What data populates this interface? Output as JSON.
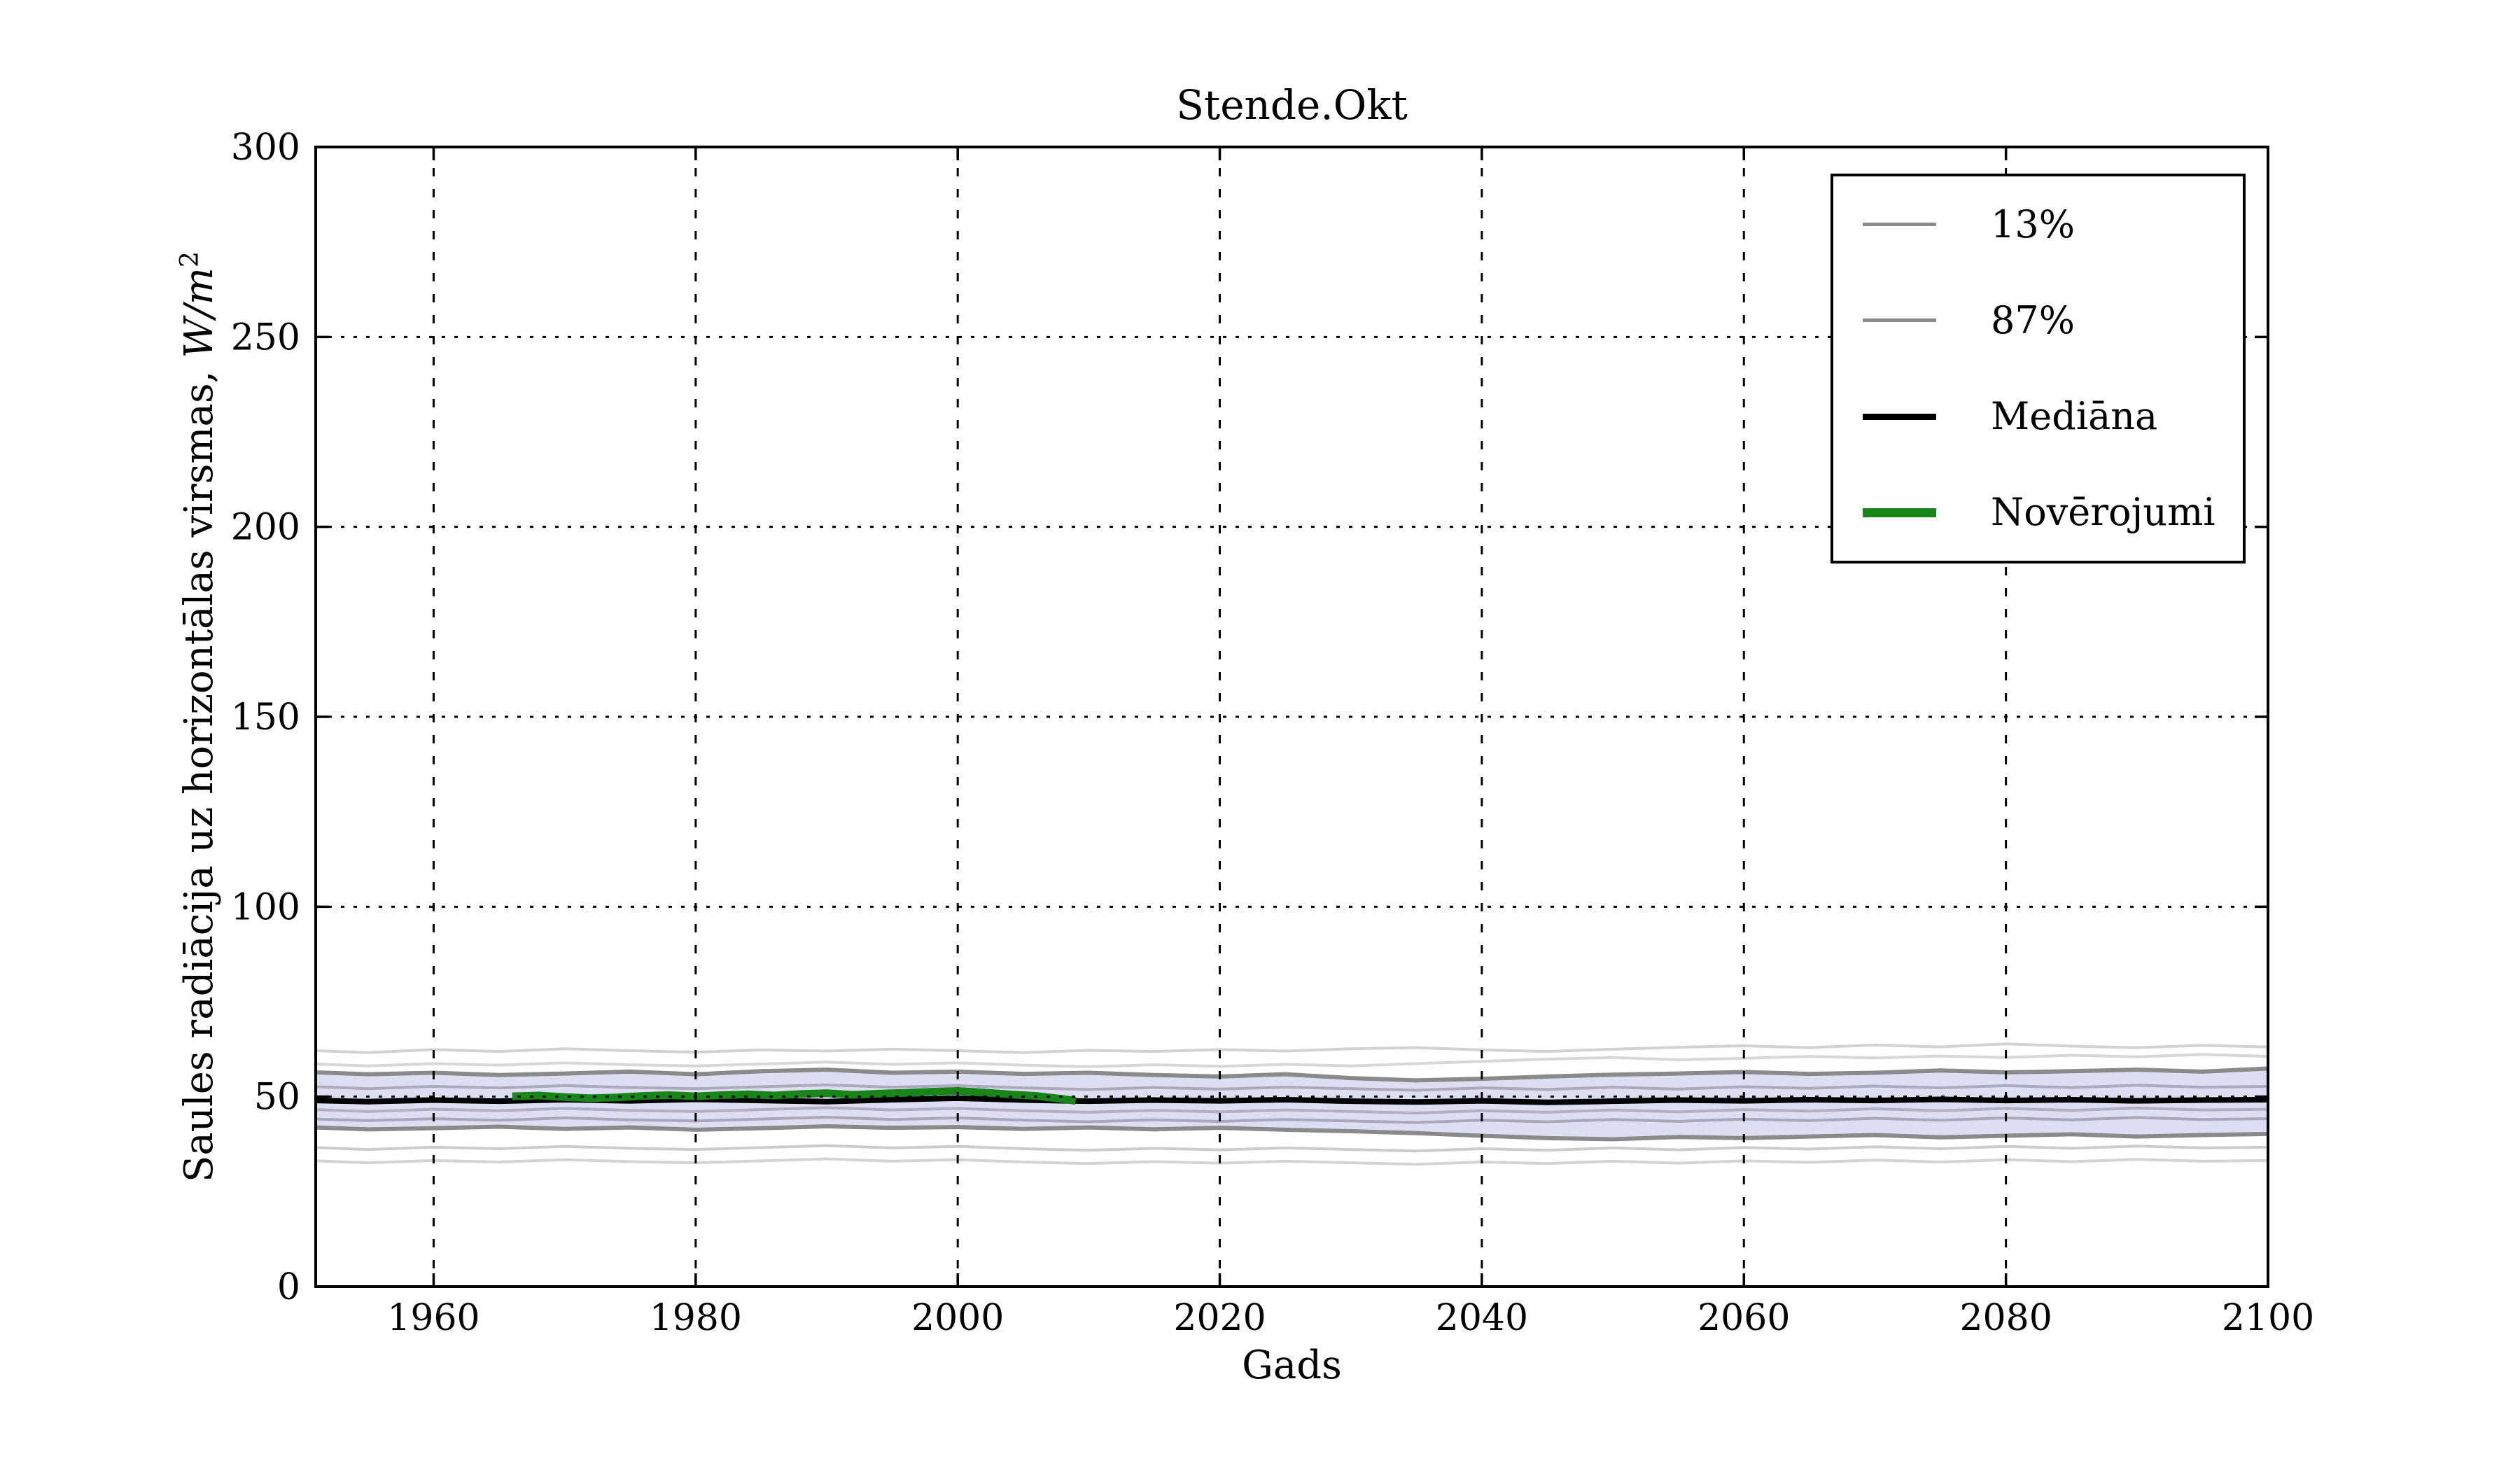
{
  "chart_data": {
    "type": "line",
    "title": "Stende.Okt",
    "xlabel": "Gads",
    "ylabel_prefix": "Saules radiācija uz horizontālas virsmas, ",
    "ylabel_math": "W/m",
    "ylabel_sup": "2",
    "xlim": [
      1951,
      2100
    ],
    "ylim": [
      0,
      300
    ],
    "xticks": [
      1960,
      1980,
      2000,
      2020,
      2040,
      2060,
      2080,
      2100
    ],
    "yticks": [
      0,
      50,
      100,
      150,
      200,
      250,
      300
    ],
    "grid": "dotted black, both axes, drawn above lines",
    "colors": {
      "band": "#dedef2",
      "percentile_line": "#8a8a8a",
      "ensemble_outer": "#d2d2d2",
      "ensemble_inner": "#aaaabc",
      "median": "#000000",
      "observations": "#178517",
      "grid": "#000000",
      "spine": "#000000",
      "background": "#ffffff"
    },
    "x_years": [
      1951,
      1955,
      1960,
      1965,
      1970,
      1975,
      1980,
      1985,
      1990,
      1995,
      2000,
      2005,
      2010,
      2015,
      2020,
      2025,
      2030,
      2035,
      2040,
      2045,
      2050,
      2055,
      2060,
      2065,
      2070,
      2075,
      2080,
      2085,
      2090,
      2095,
      2100
    ],
    "band": {
      "between": [
        "13%",
        "87%"
      ],
      "fill": "#dedef2"
    },
    "series": [
      {
        "name": "ensemble-high-1",
        "role": "ensemble",
        "color": "#d2d2d2",
        "width": 4,
        "values": [
          62.1,
          61.6,
          62.4,
          61.9,
          62.6,
          62.1,
          61.7,
          62.3,
          62.0,
          62.5,
          62.1,
          61.6,
          62.2,
          61.9,
          62.4,
          62.0,
          62.6,
          62.9,
          62.3,
          61.9,
          62.5,
          63.0,
          63.4,
          62.9,
          63.6,
          63.1,
          63.9,
          63.3,
          62.9,
          63.5,
          63.1
        ]
      },
      {
        "name": "ensemble-high-2",
        "role": "ensemble",
        "color": "#d7d7d7",
        "width": 4,
        "values": [
          58.6,
          58.1,
          58.7,
          58.3,
          58.9,
          58.4,
          58.1,
          58.6,
          59.1,
          58.5,
          58.9,
          58.3,
          57.9,
          58.4,
          58.0,
          58.5,
          58.1,
          58.7,
          59.3,
          59.9,
          60.3,
          59.7,
          60.1,
          60.6,
          60.2,
          60.7,
          60.3,
          60.9,
          60.5,
          61.1,
          60.6
        ]
      },
      {
        "name": "ensemble-mid-1",
        "role": "ensemble",
        "color": "#aaaabc",
        "width": 4,
        "values": [
          52.6,
          52.1,
          52.7,
          52.3,
          52.9,
          52.4,
          52.1,
          52.6,
          53.1,
          52.5,
          52.9,
          52.3,
          51.9,
          52.4,
          52.0,
          52.5,
          52.1,
          51.7,
          52.3,
          51.9,
          52.5,
          52.0,
          52.6,
          52.2,
          52.8,
          52.3,
          52.9,
          52.4,
          53.0,
          52.5,
          52.7
        ]
      },
      {
        "name": "ensemble-mid-2",
        "role": "ensemble",
        "color": "#b0b0c2",
        "width": 4,
        "values": [
          46.6,
          46.1,
          46.7,
          46.3,
          46.9,
          46.4,
          46.1,
          46.6,
          47.1,
          46.5,
          46.9,
          46.3,
          45.9,
          46.4,
          46.0,
          46.5,
          46.1,
          45.7,
          46.3,
          45.9,
          46.5,
          46.0,
          46.6,
          46.2,
          46.8,
          46.3,
          46.9,
          46.4,
          47.0,
          46.5,
          46.7
        ]
      },
      {
        "name": "ensemble-mid-3",
        "role": "ensemble",
        "color": "#a8a8ba",
        "width": 4,
        "values": [
          44.1,
          43.7,
          44.2,
          43.8,
          44.4,
          43.9,
          43.6,
          44.1,
          44.6,
          44.0,
          44.4,
          43.8,
          43.4,
          43.9,
          43.5,
          44.0,
          43.6,
          43.2,
          43.8,
          43.4,
          44.0,
          43.5,
          44.1,
          43.7,
          44.3,
          43.8,
          44.4,
          43.9,
          44.5,
          44.0,
          44.2
        ]
      },
      {
        "name": "ensemble-low-1",
        "role": "ensemble",
        "color": "#cccccc",
        "width": 4,
        "values": [
          36.6,
          36.1,
          36.7,
          36.3,
          36.9,
          36.4,
          36.1,
          36.6,
          37.1,
          36.5,
          36.9,
          36.3,
          35.9,
          36.4,
          36.0,
          36.5,
          36.1,
          35.7,
          36.3,
          35.9,
          36.5,
          36.0,
          36.6,
          36.2,
          36.8,
          36.3,
          36.9,
          36.4,
          37.0,
          36.5,
          36.7
        ]
      },
      {
        "name": "ensemble-low-2",
        "role": "ensemble",
        "color": "#d4d4d4",
        "width": 4,
        "values": [
          33.1,
          32.6,
          33.2,
          32.8,
          33.4,
          32.9,
          32.6,
          33.1,
          33.6,
          33.0,
          33.4,
          32.8,
          32.4,
          32.9,
          32.5,
          33.0,
          32.6,
          32.2,
          32.8,
          32.4,
          33.0,
          32.5,
          33.1,
          32.7,
          33.3,
          32.8,
          33.4,
          32.9,
          33.5,
          33.0,
          33.2
        ]
      },
      {
        "name": "13%",
        "role": "percentile",
        "color": "#8a8a8a",
        "width": 6,
        "values": [
          41.9,
          41.4,
          41.7,
          42.1,
          41.5,
          41.9,
          41.3,
          41.7,
          42.2,
          41.8,
          42.0,
          41.5,
          41.9,
          41.4,
          41.8,
          41.3,
          40.9,
          40.4,
          39.7,
          39.1,
          38.8,
          39.4,
          39.1,
          39.5,
          39.9,
          39.3,
          39.7,
          40.1,
          39.5,
          39.9,
          40.2
        ]
      },
      {
        "name": "87%",
        "role": "percentile",
        "color": "#8a8a8a",
        "width": 6,
        "values": [
          56.4,
          55.9,
          56.3,
          55.7,
          56.1,
          56.6,
          55.9,
          56.7,
          57.1,
          56.3,
          56.6,
          56.0,
          56.3,
          55.7,
          55.3,
          55.9,
          54.9,
          54.3,
          54.7,
          55.3,
          55.8,
          56.1,
          56.5,
          56.0,
          56.3,
          56.9,
          56.4,
          56.7,
          57.1,
          56.6,
          57.4
        ]
      },
      {
        "name": "Mediāna",
        "role": "median",
        "color": "#000000",
        "width": 8,
        "values": [
          49.0,
          48.7,
          49.1,
          48.8,
          49.2,
          48.9,
          49.3,
          49.0,
          48.7,
          49.2,
          49.6,
          49.1,
          48.8,
          49.1,
          48.9,
          49.2,
          48.8,
          48.6,
          48.9,
          48.5,
          48.8,
          49.1,
          48.9,
          49.2,
          49.0,
          49.3,
          49.0,
          49.2,
          48.9,
          49.1,
          49.2
        ]
      }
    ],
    "observations": {
      "name": "Novērojumi",
      "color": "#178517",
      "width": 11,
      "x": [
        1966,
        1968,
        1970,
        1972,
        1974,
        1976,
        1978,
        1980,
        1982,
        1984,
        1986,
        1988,
        1990,
        1992,
        1994,
        1996,
        1998,
        2000,
        2002,
        2004,
        2006,
        2008,
        2009
      ],
      "values": [
        50.1,
        50.3,
        49.9,
        49.6,
        49.8,
        50.2,
        50.4,
        50.1,
        50.4,
        50.6,
        50.3,
        50.7,
        50.9,
        50.5,
        50.8,
        51.0,
        51.3,
        51.5,
        51.1,
        50.6,
        50.2,
        49.4,
        48.9
      ]
    },
    "legend": {
      "position": "upper right",
      "items": [
        {
          "label": "13%",
          "color": "#8a8a8a",
          "thickness": 5
        },
        {
          "label": "87%",
          "color": "#8a8a8a",
          "thickness": 5
        },
        {
          "label": "Mediāna",
          "color": "#000000",
          "thickness": 9
        },
        {
          "label": "Novērojumi",
          "color": "#178517",
          "thickness": 13
        }
      ]
    }
  }
}
